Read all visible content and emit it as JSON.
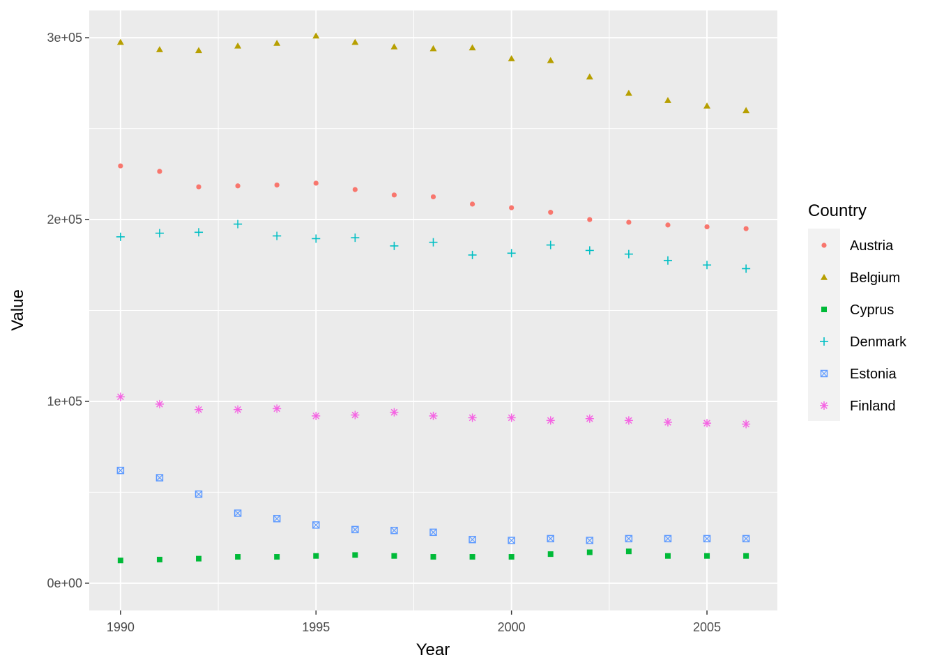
{
  "chart_data": {
    "type": "scatter",
    "title": "",
    "xlabel": "Year",
    "ylabel": "Value",
    "xlim": [
      1989.2,
      2006.8
    ],
    "ylim": [
      -15000,
      315000
    ],
    "x_ticks": [
      1990,
      1995,
      2000,
      2005
    ],
    "x_tick_labels": [
      "1990",
      "1995",
      "2000",
      "2005"
    ],
    "y_ticks": [
      0,
      100000,
      200000,
      300000
    ],
    "y_tick_labels": [
      "0e+00",
      "1e+05",
      "2e+05",
      "3e+05"
    ],
    "grid": true,
    "legend": {
      "title": "Country",
      "position": "right"
    },
    "x": [
      1990,
      1991,
      1992,
      1993,
      1994,
      1995,
      1996,
      1997,
      1998,
      1999,
      2000,
      2001,
      2002,
      2003,
      2004,
      2005,
      2006
    ],
    "series": [
      {
        "name": "Austria",
        "color": "#F8766D",
        "shape": "circle",
        "values": [
          229500,
          226500,
          218000,
          218500,
          219000,
          220000,
          216500,
          213500,
          212500,
          208500,
          206500,
          204000,
          200000,
          198500,
          197000,
          196000,
          195000
        ]
      },
      {
        "name": "Belgium",
        "color": "#B79F00",
        "shape": "triangle",
        "values": [
          297500,
          293500,
          293000,
          295500,
          297000,
          301000,
          297500,
          295000,
          294000,
          294500,
          288500,
          287500,
          278500,
          269500,
          265500,
          262500,
          260000
        ]
      },
      {
        "name": "Cyprus",
        "color": "#00BA38",
        "shape": "square",
        "values": [
          12500,
          13000,
          13500,
          14500,
          14500,
          15000,
          15500,
          15000,
          14500,
          14500,
          14500,
          16000,
          17000,
          17500,
          15000,
          15000,
          15000
        ]
      },
      {
        "name": "Denmark",
        "color": "#00BFC4",
        "shape": "plus",
        "values": [
          190500,
          192500,
          193000,
          197500,
          191000,
          189500,
          190000,
          185500,
          187500,
          180500,
          181500,
          186000,
          183000,
          181000,
          177500,
          175000,
          173000
        ]
      },
      {
        "name": "Estonia",
        "color": "#619CFF",
        "shape": "square-cross",
        "values": [
          62000,
          58000,
          49000,
          38500,
          35500,
          32000,
          29500,
          29000,
          28000,
          24000,
          23500,
          24500,
          23500,
          24500,
          24500,
          24500,
          24500
        ]
      },
      {
        "name": "Finland",
        "color": "#F564E3",
        "shape": "asterisk",
        "values": [
          102500,
          98500,
          95500,
          95500,
          96000,
          92000,
          92500,
          94000,
          92000,
          91000,
          91000,
          89500,
          90500,
          89500,
          88500,
          88000,
          87500
        ]
      }
    ]
  }
}
